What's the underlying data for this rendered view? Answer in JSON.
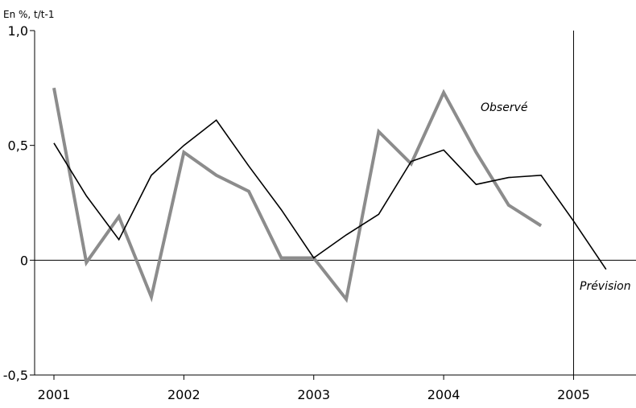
{
  "chart_data": {
    "type": "line",
    "unit_label": "En %, t/t-1",
    "ylim": [
      -0.5,
      1.0
    ],
    "y_ticks": [
      {
        "value": 1.0,
        "label": "1,0"
      },
      {
        "value": 0.5,
        "label": "0,5"
      },
      {
        "value": 0.0,
        "label": "0"
      },
      {
        "value": -0.5,
        "label": "-0,5"
      }
    ],
    "xlim": [
      2001.0,
      2005.4
    ],
    "x_ticks": [
      {
        "value": 2001,
        "label": "2001"
      },
      {
        "value": 2002,
        "label": "2002"
      },
      {
        "value": 2003,
        "label": "2003"
      },
      {
        "value": 2004,
        "label": "2004"
      },
      {
        "value": 2005,
        "label": "2005"
      }
    ],
    "forecast_start": 2005.0,
    "annotations": {
      "observed": "Observé",
      "forecast": "Prévision"
    },
    "series": [
      {
        "name": "Observé",
        "color": "#8c8c8c",
        "x": [
          2001.0,
          2001.25,
          2001.5,
          2001.75,
          2002.0,
          2002.25,
          2002.5,
          2002.75,
          2003.0,
          2003.25,
          2003.5,
          2003.75,
          2004.0,
          2004.25,
          2004.5,
          2004.75
        ],
        "y": [
          0.75,
          -0.01,
          0.19,
          -0.16,
          0.47,
          0.37,
          0.3,
          0.01,
          0.01,
          -0.17,
          0.56,
          0.42,
          0.73,
          0.47,
          0.24,
          0.15
        ]
      },
      {
        "name": "Prévision",
        "color": "#000000",
        "x": [
          2001.0,
          2001.25,
          2001.5,
          2001.75,
          2002.0,
          2002.25,
          2002.5,
          2002.75,
          2003.0,
          2003.25,
          2003.5,
          2003.75,
          2004.0,
          2004.25,
          2004.5,
          2004.75,
          2005.0,
          2005.25
        ],
        "y": [
          0.51,
          0.28,
          0.09,
          0.37,
          0.5,
          0.61,
          0.41,
          0.22,
          0.01,
          0.11,
          0.2,
          0.43,
          0.48,
          0.33,
          0.36,
          0.37,
          0.17,
          -0.04
        ]
      }
    ]
  }
}
